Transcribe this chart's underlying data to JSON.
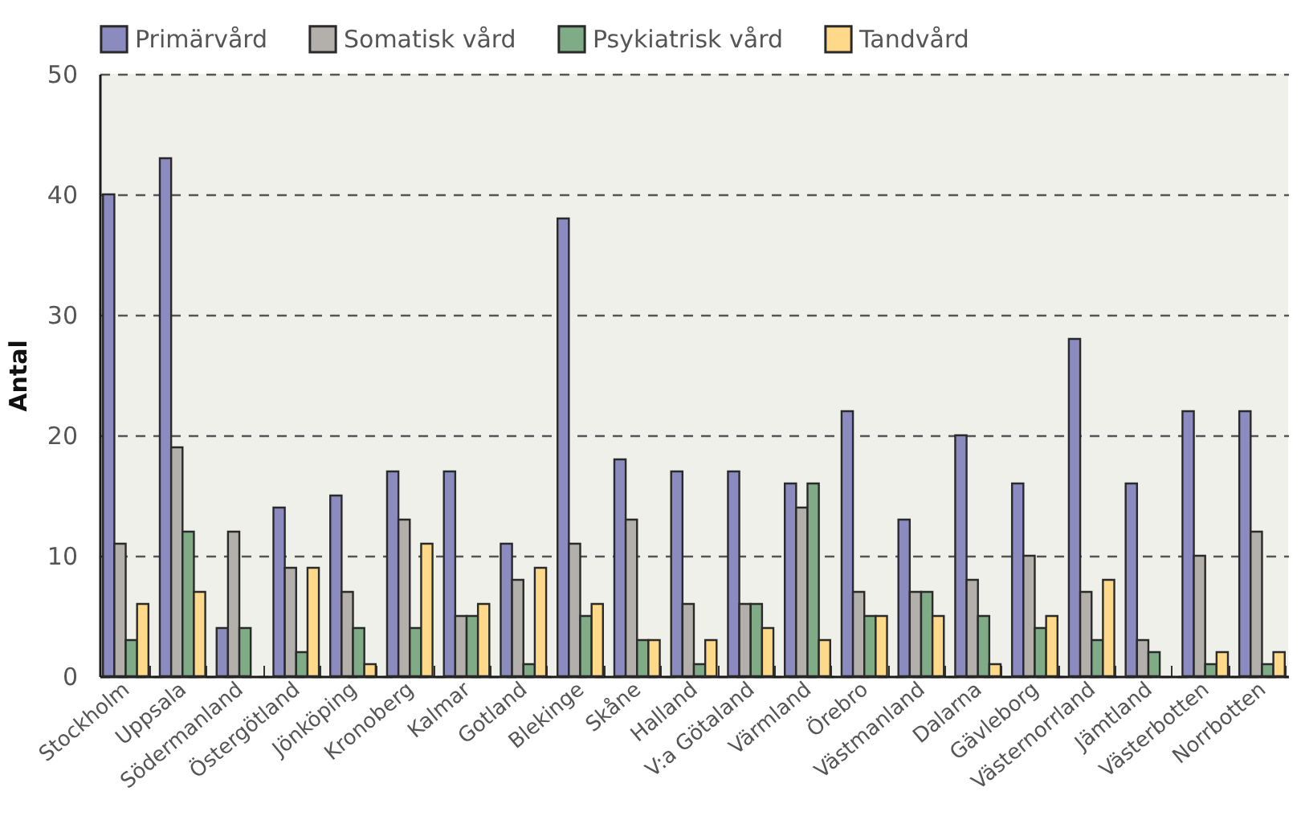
{
  "chart_data": {
    "type": "bar",
    "ylabel": "Antal",
    "categories": [
      "Stockholm",
      "Uppsala",
      "Södermanland",
      "Östergötland",
      "Jönköping",
      "Kronoberg",
      "Kalmar",
      "Gotland",
      "Blekinge",
      "Skåne",
      "Halland",
      "V:a Götaland",
      "Värmland",
      "Örebro",
      "Västmanland",
      "Dalarna",
      "Gävleborg",
      "Västernorrland",
      "Jämtland",
      "Västerbotten",
      "Norrbotten"
    ],
    "series": [
      {
        "name": "Primärvård",
        "color": "#8b8bc0",
        "values": [
          40,
          43,
          4,
          14,
          15,
          17,
          17,
          11,
          38,
          18,
          17,
          17,
          16,
          22,
          13,
          20,
          16,
          28,
          16,
          22,
          22
        ]
      },
      {
        "name": "Somatisk vård",
        "color": "#b3afaa",
        "values": [
          11,
          19,
          12,
          9,
          7,
          13,
          5,
          8,
          11,
          13,
          6,
          6,
          14,
          7,
          7,
          8,
          10,
          7,
          3,
          10,
          12
        ]
      },
      {
        "name": "Psykiatrisk vård",
        "color": "#7fab86",
        "values": [
          3,
          12,
          4,
          2,
          4,
          4,
          5,
          1,
          5,
          3,
          1,
          6,
          16,
          5,
          7,
          5,
          4,
          3,
          2,
          1,
          1
        ]
      },
      {
        "name": "Tandvård",
        "color": "#ffd98a",
        "values": [
          6,
          7,
          0,
          9,
          1,
          11,
          6,
          9,
          6,
          3,
          3,
          4,
          3,
          5,
          5,
          1,
          5,
          8,
          0,
          2,
          2
        ]
      }
    ],
    "ylim": [
      0,
      50
    ],
    "yticks": [
      0,
      10,
      20,
      30,
      40,
      50
    ],
    "grid": "y",
    "legend": "top"
  }
}
